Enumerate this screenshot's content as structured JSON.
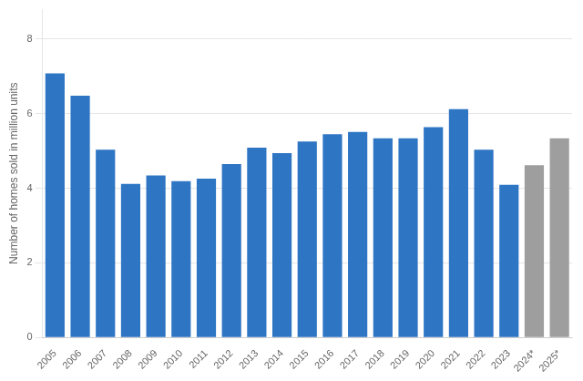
{
  "chart_data": {
    "type": "bar",
    "categories": [
      "2005",
      "2006",
      "2007",
      "2008",
      "2009",
      "2010",
      "2011",
      "2012",
      "2013",
      "2014",
      "2015",
      "2016",
      "2017",
      "2018",
      "2019",
      "2020",
      "2021",
      "2022",
      "2023",
      "2024*",
      "2025*"
    ],
    "values": [
      7.08,
      6.48,
      5.03,
      4.12,
      4.34,
      4.19,
      4.26,
      4.65,
      5.09,
      4.94,
      5.25,
      5.45,
      5.51,
      5.34,
      5.34,
      5.64,
      6.12,
      5.03,
      4.09,
      4.62,
      5.34
    ],
    "colors": [
      "#2e75c4",
      "#2e75c4",
      "#2e75c4",
      "#2e75c4",
      "#2e75c4",
      "#2e75c4",
      "#2e75c4",
      "#2e75c4",
      "#2e75c4",
      "#2e75c4",
      "#2e75c4",
      "#2e75c4",
      "#2e75c4",
      "#2e75c4",
      "#2e75c4",
      "#2e75c4",
      "#2e75c4",
      "#2e75c4",
      "#2e75c4",
      "#9e9e9e",
      "#9e9e9e"
    ],
    "ylabel": "Number of homes sold in million units",
    "ylim": [
      0,
      8.8
    ],
    "yticks": [
      0,
      2,
      4,
      6,
      8
    ],
    "grid": true
  }
}
